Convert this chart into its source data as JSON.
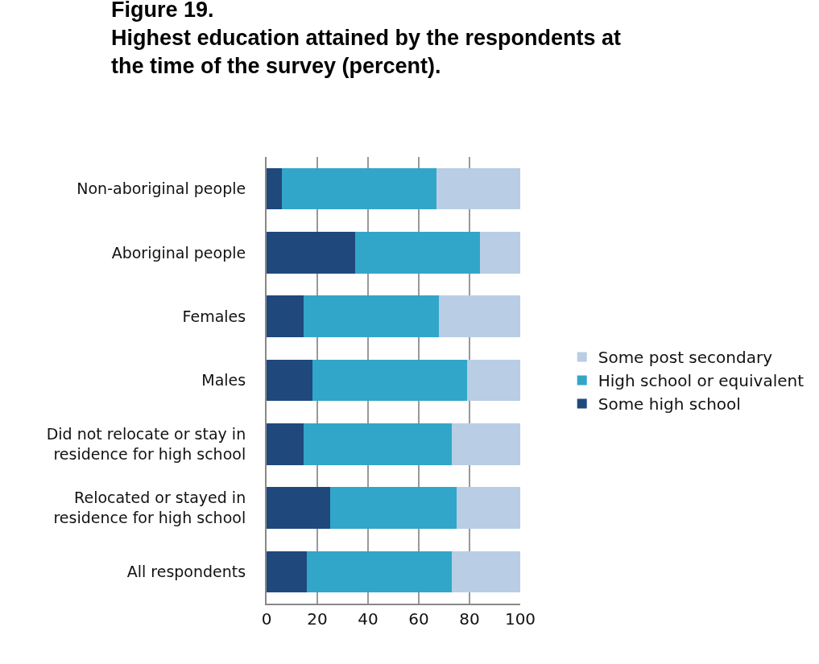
{
  "chart_data": {
    "type": "bar",
    "orientation": "horizontal",
    "stacked": true,
    "title": "Figure 19.\nHighest education attained by the respondents at\nthe time of the survey (percent).",
    "categories": [
      "Non-aboriginal people",
      "Aboriginal people",
      "Females",
      "Males",
      "Did not relocate or stay in\nresidence for high school",
      "Relocated or stayed in\nresidence for high school",
      "All respondents"
    ],
    "series": [
      {
        "name": "Some high school",
        "color": "#1f497d",
        "values": [
          6,
          35,
          14.5,
          18,
          14.5,
          25,
          16
        ]
      },
      {
        "name": "High school or equivalent",
        "color": "#31a6c8",
        "values": [
          61,
          49,
          53.5,
          61,
          58.5,
          50,
          57
        ]
      },
      {
        "name": "Some post secondary",
        "color": "#b9cde5",
        "values": [
          33,
          16,
          32,
          21,
          27,
          25,
          27
        ]
      }
    ],
    "xlim": [
      0,
      100
    ],
    "xticks": [
      0,
      20,
      40,
      60,
      80,
      100
    ],
    "grid": "x",
    "legend": "right"
  }
}
